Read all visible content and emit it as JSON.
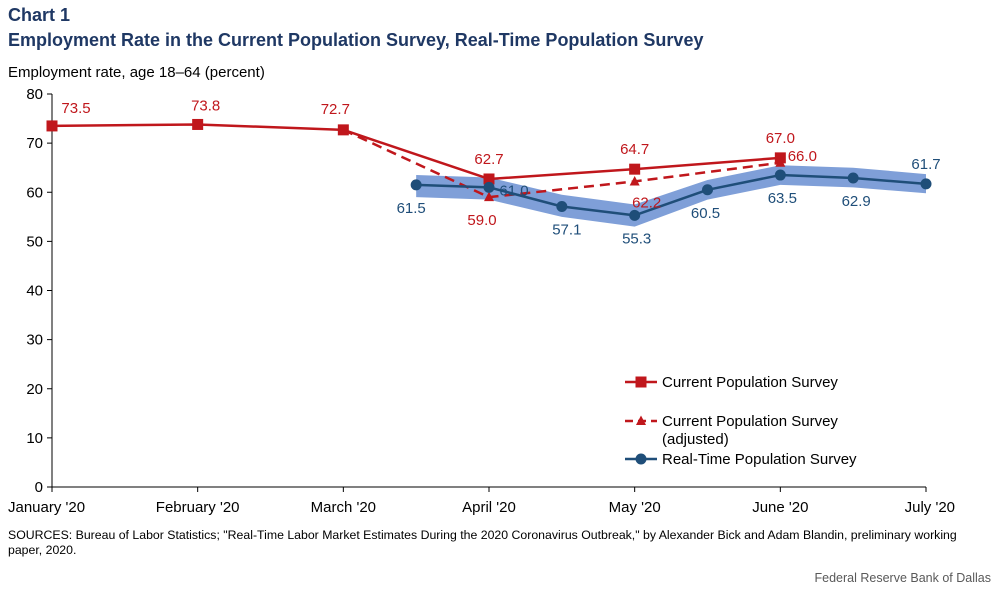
{
  "chart_number": "Chart 1",
  "title": "Employment Rate in the Current Population Survey, Real-Time Population Survey",
  "sources": "SOURCES: Bureau of Labor Statistics; \"Real-Time Labor Market Estimates During the 2020 Coronavirus Outbreak,\" by Alexander Bick and Adam Blandin, preliminary working paper, 2020.",
  "credit": "Federal Reserve Bank of Dallas",
  "colors": {
    "cps": "#c0171c",
    "rps": "#1f4e79",
    "band": "#7f9fd8",
    "axis": "#000000"
  },
  "chart_data": {
    "type": "line",
    "ylabel": "Employment rate, age 18–64 (percent)",
    "ylim": [
      0,
      80
    ],
    "yticks": [
      0,
      10,
      20,
      30,
      40,
      50,
      60,
      70,
      80
    ],
    "xlim": [
      0,
      6
    ],
    "xticks": [
      {
        "x": 0,
        "label": "January '20"
      },
      {
        "x": 1,
        "label": "February '20"
      },
      {
        "x": 2,
        "label": "March '20"
      },
      {
        "x": 3,
        "label": "April '20"
      },
      {
        "x": 4,
        "label": "May '20"
      },
      {
        "x": 5,
        "label": "June '20"
      },
      {
        "x": 6,
        "label": "July '20"
      }
    ],
    "legend_position": "bottom-right",
    "series": [
      {
        "key": "cps",
        "name": "Current Population Survey",
        "style": "solid",
        "marker": "square",
        "points": [
          {
            "x": 0,
            "y": 73.5,
            "label": "73.5"
          },
          {
            "x": 1,
            "y": 73.8,
            "label": "73.8"
          },
          {
            "x": 2,
            "y": 72.7,
            "label": "72.7"
          },
          {
            "x": 3,
            "y": 62.7,
            "label": "62.7"
          },
          {
            "x": 4,
            "y": 64.7,
            "label": "64.7"
          },
          {
            "x": 5,
            "y": 67.0,
            "label": "67.0"
          }
        ]
      },
      {
        "key": "cps_adj",
        "name": "Current Population Survey (adjusted)",
        "name_lines": [
          "Current Population Survey",
          "(adjusted)"
        ],
        "style": "dashed",
        "marker": "triangle",
        "points": [
          {
            "x": 2,
            "y": 72.7,
            "label": ""
          },
          {
            "x": 3,
            "y": 59.0,
            "label": "59.0"
          },
          {
            "x": 4,
            "y": 62.2,
            "label": "62.2"
          },
          {
            "x": 5,
            "y": 66.0,
            "label": "66.0"
          }
        ]
      },
      {
        "key": "rps",
        "name": "Real-Time Population Survey",
        "style": "solid",
        "marker": "circle",
        "points": [
          {
            "x": 2.5,
            "y": 61.5,
            "label": "61.5"
          },
          {
            "x": 3,
            "y": 61.0,
            "label": "61.0"
          },
          {
            "x": 3.5,
            "y": 57.1,
            "label": "57.1"
          },
          {
            "x": 4,
            "y": 55.3,
            "label": "55.3"
          },
          {
            "x": 4.5,
            "y": 60.5,
            "label": "60.5"
          },
          {
            "x": 5,
            "y": 63.5,
            "label": "63.5"
          },
          {
            "x": 5.5,
            "y": 62.9,
            "label": "62.9"
          },
          {
            "x": 6,
            "y": 61.7,
            "label": "61.7"
          }
        ],
        "band": [
          {
            "x": 2.5,
            "low": 59.0,
            "high": 63.5
          },
          {
            "x": 3,
            "low": 58.5,
            "high": 63.0
          },
          {
            "x": 3.5,
            "low": 55.0,
            "high": 59.5
          },
          {
            "x": 4,
            "low": 53.0,
            "high": 57.5
          },
          {
            "x": 4.5,
            "low": 58.5,
            "high": 62.5
          },
          {
            "x": 5,
            "low": 61.5,
            "high": 65.5
          },
          {
            "x": 5.5,
            "low": 61.0,
            "high": 65.0
          },
          {
            "x": 6,
            "low": 59.8,
            "high": 63.7
          }
        ]
      }
    ]
  }
}
